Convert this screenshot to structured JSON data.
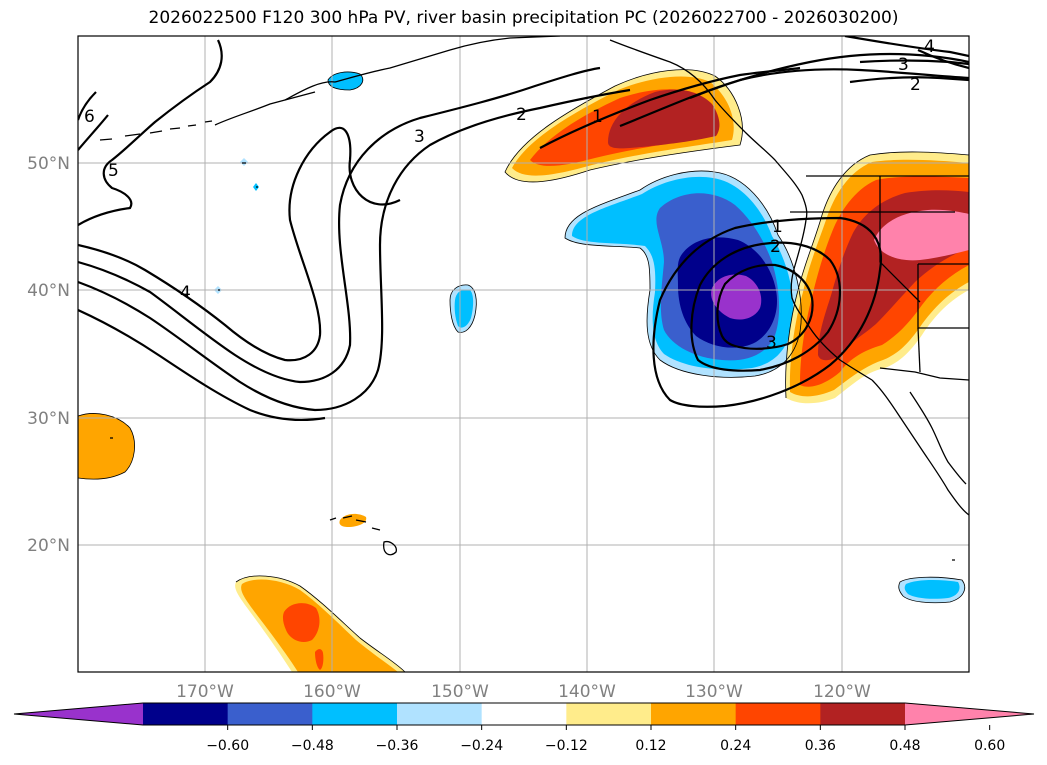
{
  "title": "2026022500 F120 300 hPa PV, river basin precipitation PC (2026022700 - 2026030200)",
  "map": {
    "projection": "plate-carree",
    "lon_range": [
      -180,
      -110
    ],
    "lat_range": [
      10,
      60
    ],
    "lat_labels": [
      "50°N",
      "40°N",
      "30°N",
      "20°N"
    ],
    "lon_labels": [
      "170°W",
      "160°W",
      "150°W",
      "140°W",
      "130°W",
      "120°W"
    ],
    "contour_labels": [
      "6",
      "5",
      "4",
      "3",
      "2",
      "1",
      "1",
      "2",
      "3",
      "2",
      "3",
      "4"
    ],
    "fill_colors": {
      "purple": "#9932cc",
      "navy": "#00008b",
      "royal_blue": "#3a5fcd",
      "deep_sky_blue": "#00bfff",
      "light_sky_blue": "#b0e2ff",
      "light_yellow": "#ffec8b",
      "orange": "#ffa500",
      "orange_red": "#ff4500",
      "firebrick": "#b22222",
      "pink": "#ff82ab"
    }
  },
  "colorbar": {
    "ticks": [
      "−0.60",
      "−0.48",
      "−0.36",
      "−0.24",
      "−0.12",
      "0.12",
      "0.24",
      "0.36",
      "0.48",
      "0.60"
    ],
    "colors": [
      "#9932cc",
      "#00008b",
      "#3a5fcd",
      "#00bfff",
      "#b0e2ff",
      "#ffffff",
      "#ffec8b",
      "#ffa500",
      "#ff4500",
      "#b22222",
      "#ff82ab"
    ]
  }
}
